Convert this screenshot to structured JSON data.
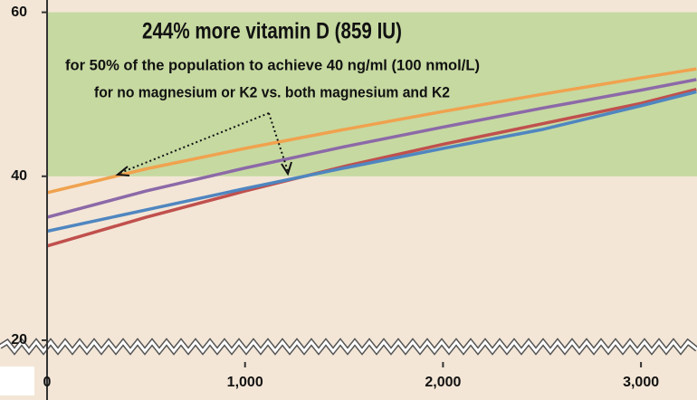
{
  "chart_data": {
    "type": "line",
    "annotations": [
      "244% more vitamin D (859 IU)",
      "for 50% of the population to achieve 40 ng/ml (100 nmol/L)",
      "for no magnesium or K2 vs. both magnesium and K2"
    ],
    "band": [
      40,
      60
    ],
    "band_color": "#c6d9a1",
    "x": [
      0,
      500,
      1000,
      1500,
      2000,
      2500,
      3000,
      3280
    ],
    "series": [
      {
        "color": "#f0a24e",
        "values": [
          38,
          40.9,
          43.4,
          45.7,
          47.9,
          50.0,
          52.0,
          53.1
        ]
      },
      {
        "color": "#8c69a8",
        "values": [
          35,
          38.2,
          41.0,
          43.6,
          46.0,
          48.3,
          50.5,
          51.8
        ]
      },
      {
        "color": "#c0504d",
        "values": [
          31.5,
          35.0,
          38.2,
          41.2,
          43.9,
          46.4,
          48.9,
          50.6
        ]
      },
      {
        "color": "#4f86c0",
        "values": [
          33.3,
          35.9,
          38.5,
          41.0,
          43.4,
          45.7,
          48.6,
          50.3
        ]
      }
    ],
    "xlim": [
      0,
      3283
    ],
    "ylim": [
      17.9,
      61.5
    ],
    "xticks": [
      0,
      {
        "value": 1000,
        "label": "1,000"
      },
      {
        "value": 2000,
        "label": "2,000"
      },
      {
        "value": 3000,
        "label": "3,000"
      }
    ],
    "yticks": [
      20,
      40,
      60
    ]
  }
}
